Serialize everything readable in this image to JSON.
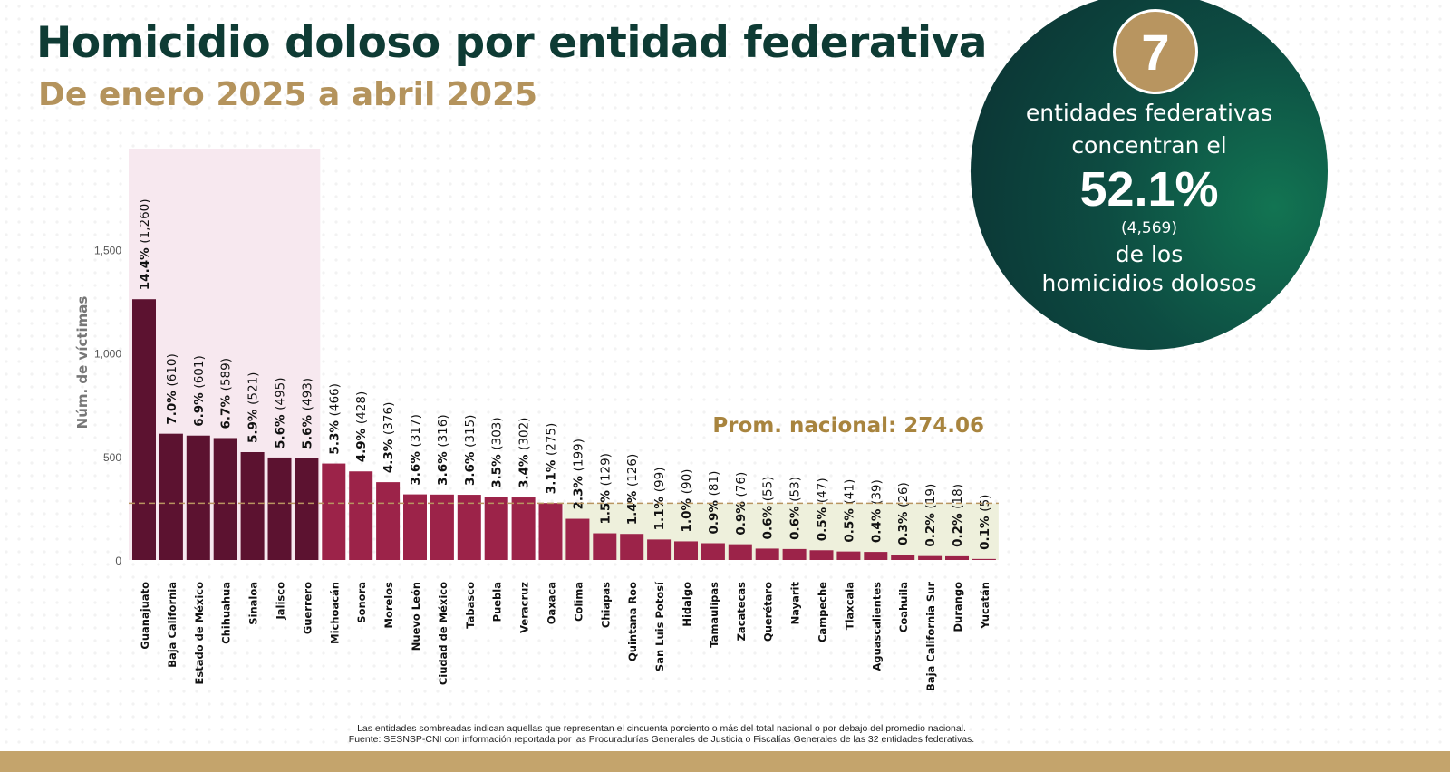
{
  "header": {
    "title": "Homicidio doloso por entidad federativa",
    "subtitle": "De enero 2025 a abril 2025"
  },
  "summary": {
    "count": "7",
    "line1": "entidades federativas",
    "line2": "concentran el",
    "percent": "52.1%",
    "total": "(4,569)",
    "line4": "de los",
    "line5": "homicidios dolosos"
  },
  "chart_data": {
    "type": "bar",
    "ylabel": "Núm. de víctimas",
    "ylim": [
      0,
      1900
    ],
    "yticks": [
      0,
      500,
      1000,
      1500
    ],
    "ytick_labels": [
      "0",
      "500",
      "1,000",
      "1,500"
    ],
    "average_label": "Prom. nacional: 274.06",
    "average_value": 274.06,
    "categories": [
      "Guanajuato",
      "Baja California",
      "Estado de México",
      "Chihuahua",
      "Sinaloa",
      "Jalisco",
      "Guerrero",
      "Michoacán",
      "Sonora",
      "Morelos",
      "Nuevo León",
      "Ciudad de México",
      "Tabasco",
      "Puebla",
      "Veracruz",
      "Oaxaca",
      "Colima",
      "Chiapas",
      "Quintana Roo",
      "San Luis Potosí",
      "Hidalgo",
      "Tamaulipas",
      "Zacatecas",
      "Querétaro",
      "Nayarit",
      "Campeche",
      "Tlaxcala",
      "Aguascalientes",
      "Coahuila",
      "Baja California Sur",
      "Durango",
      "Yucatán"
    ],
    "values": [
      1260,
      610,
      601,
      589,
      521,
      495,
      493,
      466,
      428,
      376,
      317,
      316,
      315,
      303,
      302,
      275,
      199,
      129,
      126,
      99,
      90,
      81,
      76,
      55,
      53,
      47,
      41,
      39,
      26,
      19,
      18,
      5
    ],
    "percent_labels": [
      "14.4%",
      "7.0%",
      "6.9%",
      "6.7%",
      "5.9%",
      "5.6%",
      "5.6%",
      "5.3%",
      "4.9%",
      "4.3%",
      "3.6%",
      "3.6%",
      "3.6%",
      "3.5%",
      "3.4%",
      "3.1%",
      "2.3%",
      "1.5%",
      "1.4%",
      "1.1%",
      "1.0%",
      "0.9%",
      "0.9%",
      "0.6%",
      "0.6%",
      "0.5%",
      "0.5%",
      "0.4%",
      "0.3%",
      "0.2%",
      "0.2%",
      "0.1%"
    ],
    "count_labels": [
      "(1,260)",
      "(610)",
      "(601)",
      "(589)",
      "(521)",
      "(495)",
      "(493)",
      "(466)",
      "(428)",
      "(376)",
      "(317)",
      "(316)",
      "(315)",
      "(303)",
      "(302)",
      "(275)",
      "(199)",
      "(129)",
      "(126)",
      "(99)",
      "(90)",
      "(81)",
      "(76)",
      "(55)",
      "(53)",
      "(47)",
      "(41)",
      "(39)",
      "(26)",
      "(19)",
      "(18)",
      "(5)"
    ],
    "highlighted_top_count": 7,
    "colors": {
      "top_bar": "#5c1230",
      "bar": "#9c2349",
      "top_shade": "#f7e8ef",
      "below_avg_shade": "#eef0dc",
      "average_line": "#b89560",
      "average_text": "#a8843e",
      "label_text": "#111111",
      "axis_text": "#555555"
    },
    "grid": false
  },
  "footer": {
    "note": "Las entidades sombreadas indican aquellas que representan el cincuenta porciento o más del total nacional o por debajo del promedio nacional.",
    "source": "Fuente: SESNSP-CNI con información reportada por las Procuradurías Generales de Justicia o Fiscalías Generales de las 32 entidades federativas."
  }
}
